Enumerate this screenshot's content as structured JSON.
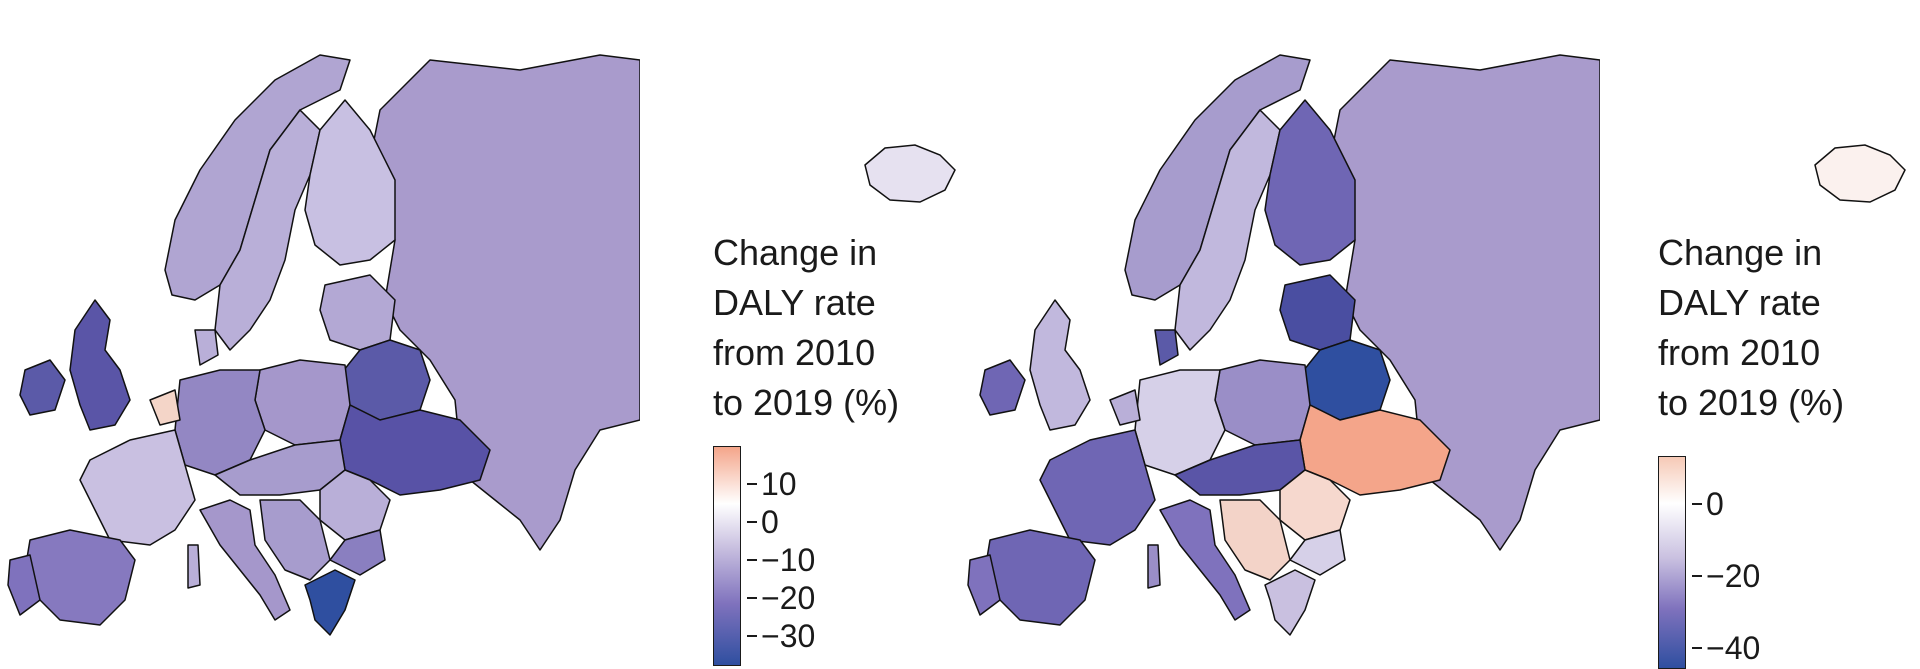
{
  "maps": [
    {
      "legend": {
        "title_lines": [
          "Change in",
          "DALY rate",
          "from 2010",
          "to 2019 (%)"
        ],
        "ticks": [
          "10",
          "0",
          "−10",
          "−20",
          "−30"
        ],
        "colors": [
          "#f4a58a",
          "#ffffff",
          "#c9c0e0",
          "#7f72bd",
          "#2f4fa0"
        ]
      }
    },
    {
      "legend": {
        "title_lines": [
          "Change in",
          "DALY rate",
          "from 2010",
          "to 2019 (%)"
        ],
        "ticks": [
          "0",
          "−20",
          "−40"
        ],
        "colors": [
          "#f6c9b6",
          "#ffffff",
          "#c9c0e0",
          "#7f72bd",
          "#2f4fa0"
        ]
      }
    }
  ]
}
